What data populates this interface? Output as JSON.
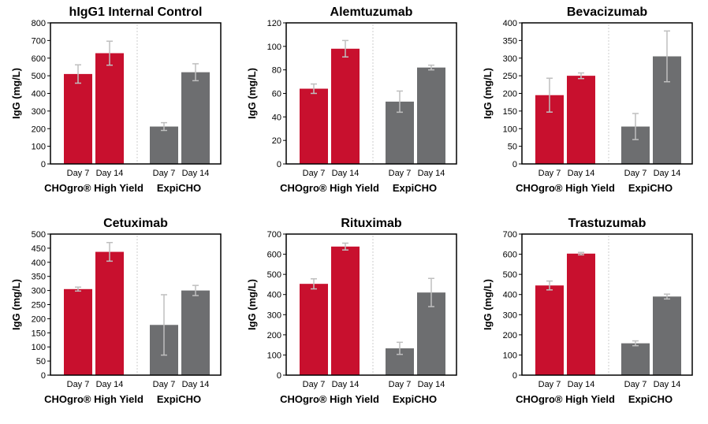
{
  "colors": {
    "chogro": "#c8102e",
    "expicho": "#6d6e70",
    "error_bar": "#bfbfbf",
    "axis": "#000000",
    "divider": "#cccccc"
  },
  "chart_data": [
    {
      "type": "bar",
      "title": "hIgG1 Internal Control",
      "ylabel": "IgG (mg/L)",
      "ylim": [
        0,
        800
      ],
      "yticks": [
        0,
        100,
        200,
        300,
        400,
        500,
        600,
        700,
        800
      ],
      "groups": [
        "CHOgro® High Yield",
        "ExpiCHO"
      ],
      "categories": [
        "Day 7",
        "Day 14",
        "Day 7",
        "Day 14"
      ],
      "values": [
        510,
        628,
        212,
        520
      ],
      "errors": [
        52,
        68,
        22,
        48
      ],
      "series_group": [
        0,
        0,
        1,
        1
      ]
    },
    {
      "type": "bar",
      "title": "Alemtuzumab",
      "ylabel": "IgG (mg/L)",
      "ylim": [
        0,
        120
      ],
      "yticks": [
        0,
        20,
        40,
        60,
        80,
        100,
        120
      ],
      "groups": [
        "CHOgro® High Yield",
        "ExpiCHO"
      ],
      "categories": [
        "Day 7",
        "Day 14",
        "Day 7",
        "Day 14"
      ],
      "values": [
        64,
        98,
        53,
        82
      ],
      "errors": [
        4,
        7,
        9,
        2
      ],
      "series_group": [
        0,
        0,
        1,
        1
      ]
    },
    {
      "type": "bar",
      "title": "Bevacizumab",
      "ylabel": "IgG (mg/L)",
      "ylim": [
        0,
        400
      ],
      "yticks": [
        0,
        50,
        100,
        150,
        200,
        250,
        300,
        350,
        400
      ],
      "groups": [
        "CHOgro® High Yield",
        "ExpiCHO"
      ],
      "categories": [
        "Day 7",
        "Day 14",
        "Day 7",
        "Day 14"
      ],
      "values": [
        195,
        250,
        106,
        305
      ],
      "errors": [
        48,
        8,
        37,
        72
      ],
      "series_group": [
        0,
        0,
        1,
        1
      ]
    },
    {
      "type": "bar",
      "title": "Cetuximab",
      "ylabel": "IgG (mg/L)",
      "ylim": [
        0,
        500
      ],
      "yticks": [
        0,
        50,
        100,
        150,
        200,
        250,
        300,
        350,
        400,
        450,
        500
      ],
      "groups": [
        "CHOgro® High Yield",
        "ExpiCHO"
      ],
      "categories": [
        "Day 7",
        "Day 14",
        "Day 7",
        "Day 14"
      ],
      "values": [
        305,
        437,
        178,
        300
      ],
      "errors": [
        7,
        33,
        107,
        18
      ],
      "series_group": [
        0,
        0,
        1,
        1
      ]
    },
    {
      "type": "bar",
      "title": "Rituximab",
      "ylabel": "IgG (mg/L)",
      "ylim": [
        0,
        700
      ],
      "yticks": [
        0,
        100,
        200,
        300,
        400,
        500,
        600,
        700
      ],
      "groups": [
        "CHOgro® High Yield",
        "ExpiCHO"
      ],
      "categories": [
        "Day 7",
        "Day 14",
        "Day 7",
        "Day 14"
      ],
      "values": [
        453,
        638,
        133,
        410
      ],
      "errors": [
        25,
        17,
        30,
        70
      ],
      "series_group": [
        0,
        0,
        1,
        1
      ]
    },
    {
      "type": "bar",
      "title": "Trastuzumab",
      "ylabel": "IgG (mg/L)",
      "ylim": [
        0,
        700
      ],
      "yticks": [
        0,
        100,
        200,
        300,
        400,
        500,
        600,
        700
      ],
      "groups": [
        "CHOgro® High Yield",
        "ExpiCHO"
      ],
      "categories": [
        "Day 7",
        "Day 14",
        "Day 7",
        "Day 14"
      ],
      "values": [
        445,
        603,
        158,
        390
      ],
      "errors": [
        22,
        6,
        12,
        12
      ],
      "series_group": [
        0,
        0,
        1,
        1
      ]
    }
  ]
}
